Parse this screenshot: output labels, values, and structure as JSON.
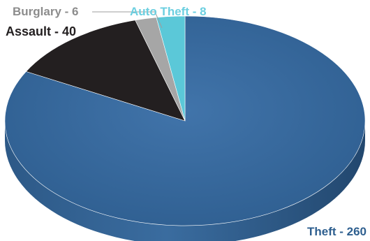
{
  "chart_data": {
    "type": "pie",
    "style": "3d",
    "title": "",
    "slices": [
      {
        "label": "Theft - 260",
        "category": "Theft",
        "value": 260,
        "color": "#3b6ea5",
        "label_color": "#2e5f8f"
      },
      {
        "label": "Assault - 40",
        "category": "Assault",
        "value": 40,
        "color": "#231f20",
        "label_color": "#231f20"
      },
      {
        "label": "Burglary - 6",
        "category": "Burglary",
        "value": 6,
        "color": "#a6a6a6",
        "label_color": "#8c8c8c"
      },
      {
        "label": "Auto Theft - 8",
        "category": "Auto Theft",
        "value": 8,
        "color": "#5bc8d8",
        "label_color": "#6ccfe0"
      }
    ]
  }
}
